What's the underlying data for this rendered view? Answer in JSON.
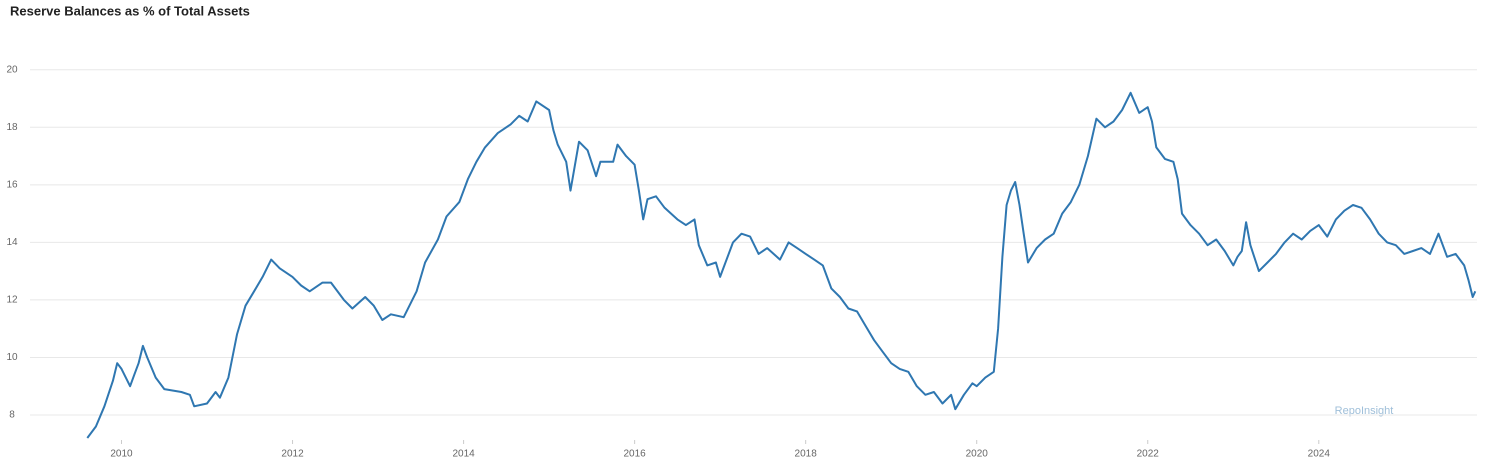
{
  "chart_data": {
    "type": "line",
    "title": "Reserve Balances as % of Total Assets",
    "annotation": "RepoInsight",
    "x": [
      2009.6,
      2009.7,
      2009.8,
      2009.9,
      2009.95,
      2010.0,
      2010.1,
      2010.15,
      2010.2,
      2010.25,
      2010.3,
      2010.4,
      2010.5,
      2010.7,
      2010.8,
      2010.85,
      2011.0,
      2011.1,
      2011.15,
      2011.25,
      2011.35,
      2011.45,
      2011.55,
      2011.65,
      2011.75,
      2011.85,
      2012.0,
      2012.1,
      2012.2,
      2012.35,
      2012.45,
      2012.6,
      2012.7,
      2012.85,
      2012.95,
      2013.05,
      2013.15,
      2013.3,
      2013.45,
      2013.55,
      2013.7,
      2013.8,
      2013.95,
      2014.05,
      2014.15,
      2014.25,
      2014.4,
      2014.55,
      2014.65,
      2014.75,
      2014.85,
      2015.0,
      2015.05,
      2015.1,
      2015.2,
      2015.25,
      2015.35,
      2015.45,
      2015.55,
      2015.6,
      2015.75,
      2015.8,
      2015.9,
      2016.0,
      2016.05,
      2016.1,
      2016.15,
      2016.25,
      2016.35,
      2016.5,
      2016.6,
      2016.7,
      2016.75,
      2016.85,
      2016.95,
      2017.0,
      2017.05,
      2017.15,
      2017.25,
      2017.35,
      2017.45,
      2017.55,
      2017.7,
      2017.8,
      2017.9,
      2018.0,
      2018.1,
      2018.2,
      2018.3,
      2018.4,
      2018.5,
      2018.6,
      2018.7,
      2018.8,
      2018.9,
      2019.0,
      2019.1,
      2019.2,
      2019.3,
      2019.4,
      2019.5,
      2019.6,
      2019.7,
      2019.75,
      2019.85,
      2019.95,
      2020.0,
      2020.1,
      2020.2,
      2020.25,
      2020.3,
      2020.35,
      2020.4,
      2020.45,
      2020.5,
      2020.55,
      2020.6,
      2020.7,
      2020.8,
      2020.9,
      2021.0,
      2021.1,
      2021.2,
      2021.3,
      2021.4,
      2021.5,
      2021.6,
      2021.7,
      2021.8,
      2021.9,
      2022.0,
      2022.05,
      2022.1,
      2022.2,
      2022.3,
      2022.35,
      2022.4,
      2022.5,
      2022.6,
      2022.7,
      2022.8,
      2022.9,
      2023.0,
      2023.05,
      2023.1,
      2023.15,
      2023.2,
      2023.3,
      2023.4,
      2023.5,
      2023.6,
      2023.7,
      2023.8,
      2023.9,
      2024.0,
      2024.1,
      2024.2,
      2024.3,
      2024.4,
      2024.5,
      2024.6,
      2024.7,
      2024.8,
      2024.9,
      2025.0,
      2025.1,
      2025.2,
      2025.3,
      2025.4,
      2025.5,
      2025.6,
      2025.7,
      2025.75,
      2025.8,
      2025.83
    ],
    "series": [
      {
        "name": "Reserve Balances as % of Total Assets",
        "color": "#2f77b1",
        "values": [
          7.2,
          7.6,
          8.3,
          9.2,
          9.8,
          9.6,
          9.0,
          9.4,
          9.8,
          10.4,
          10.0,
          9.3,
          8.9,
          8.8,
          8.7,
          8.3,
          8.4,
          8.8,
          8.6,
          9.3,
          10.8,
          11.8,
          12.3,
          12.8,
          13.4,
          13.1,
          12.8,
          12.5,
          12.3,
          12.6,
          12.6,
          12.0,
          11.7,
          12.1,
          11.8,
          11.3,
          11.5,
          11.4,
          12.3,
          13.3,
          14.1,
          14.9,
          15.4,
          16.2,
          16.8,
          17.3,
          17.8,
          18.1,
          18.4,
          18.2,
          18.9,
          18.6,
          17.9,
          17.4,
          16.8,
          15.8,
          17.5,
          17.2,
          16.3,
          16.8,
          16.8,
          17.4,
          17.0,
          16.7,
          15.8,
          14.8,
          15.5,
          15.6,
          15.2,
          14.8,
          14.6,
          14.8,
          13.9,
          13.2,
          13.3,
          12.8,
          13.2,
          14.0,
          14.3,
          14.2,
          13.6,
          13.8,
          13.4,
          14.0,
          13.8,
          13.6,
          13.4,
          13.2,
          12.4,
          12.1,
          11.7,
          11.6,
          11.1,
          10.6,
          10.2,
          9.8,
          9.6,
          9.5,
          9.0,
          8.7,
          8.8,
          8.4,
          8.7,
          8.2,
          8.7,
          9.1,
          9.0,
          9.3,
          9.5,
          11.0,
          13.5,
          15.3,
          15.8,
          16.1,
          15.3,
          14.3,
          13.3,
          13.8,
          14.1,
          14.3,
          15.0,
          15.4,
          16.0,
          17.0,
          18.3,
          18.0,
          18.2,
          18.6,
          19.2,
          18.5,
          18.7,
          18.2,
          17.3,
          16.9,
          16.8,
          16.2,
          15.0,
          14.6,
          14.3,
          13.9,
          14.1,
          13.7,
          13.2,
          13.5,
          13.7,
          14.7,
          13.9,
          13.0,
          13.3,
          13.6,
          14.0,
          14.3,
          14.1,
          14.4,
          14.6,
          14.2,
          14.8,
          15.1,
          15.3,
          15.2,
          14.8,
          14.3,
          14.0,
          13.9,
          13.6,
          13.7,
          13.8,
          13.6,
          14.3,
          13.5,
          13.6,
          13.2,
          12.7,
          12.1,
          12.3
        ]
      }
    ],
    "xlim": [
      2008.93,
      2025.85
    ],
    "xticks": [
      2010,
      2012,
      2014,
      2016,
      2018,
      2020,
      2022,
      2024
    ],
    "ylim": [
      7.13,
      21
    ],
    "yticks": [
      8,
      10,
      12,
      14,
      16,
      18,
      20
    ],
    "grid": true
  }
}
